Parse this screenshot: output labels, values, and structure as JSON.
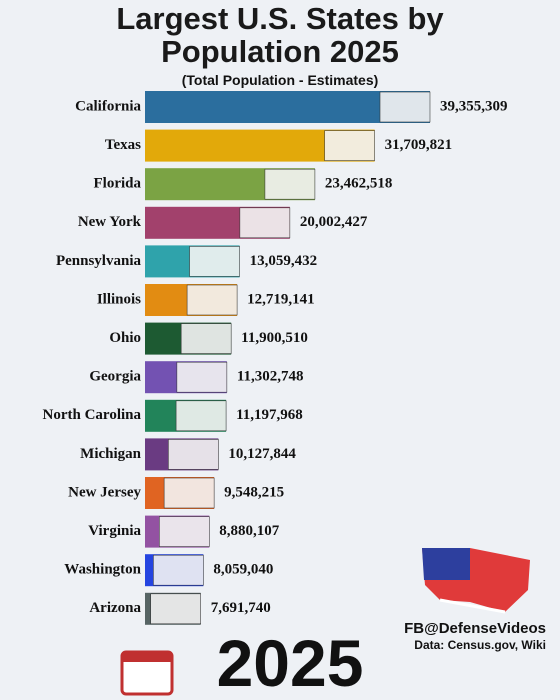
{
  "chart_data": {
    "type": "bar",
    "orientation": "horizontal",
    "title": "Largest U.S. States by Population 2025",
    "subtitle": "(Total Population - Estimates)",
    "year": "2025",
    "credit": "FB@DefenseVideos",
    "source": "Data: Census.gov, Wiki",
    "categories": [
      "California",
      "Texas",
      "Florida",
      "New York",
      "Pennsylvania",
      "Illinois",
      "Ohio",
      "Georgia",
      "North Carolina",
      "Michigan",
      "New Jersey",
      "Virginia",
      "Washington",
      "Arizona"
    ],
    "values": [
      39355309,
      31709821,
      23462518,
      20002427,
      13059432,
      12719141,
      11900510,
      11302748,
      11197968,
      10127844,
      9548215,
      8880107,
      8059040,
      7691740
    ],
    "value_labels": [
      "39,355,309",
      "31,709,821",
      "23,462,518",
      "20,002,427",
      "13,059,432",
      "12,719,141",
      "11,900,510",
      "11,302,748",
      "11,197,968",
      "10,127,844",
      "9,548,215",
      "8,880,107",
      "8,059,040",
      "7,691,740"
    ],
    "colors": [
      "#2b6e9e",
      "#e2a90a",
      "#7ba344",
      "#a2416c",
      "#2fa3ab",
      "#e28c12",
      "#1d5a32",
      "#7352b2",
      "#22845a",
      "#6a3b82",
      "#e06422",
      "#9352a2",
      "#2444e0",
      "#566464"
    ]
  }
}
